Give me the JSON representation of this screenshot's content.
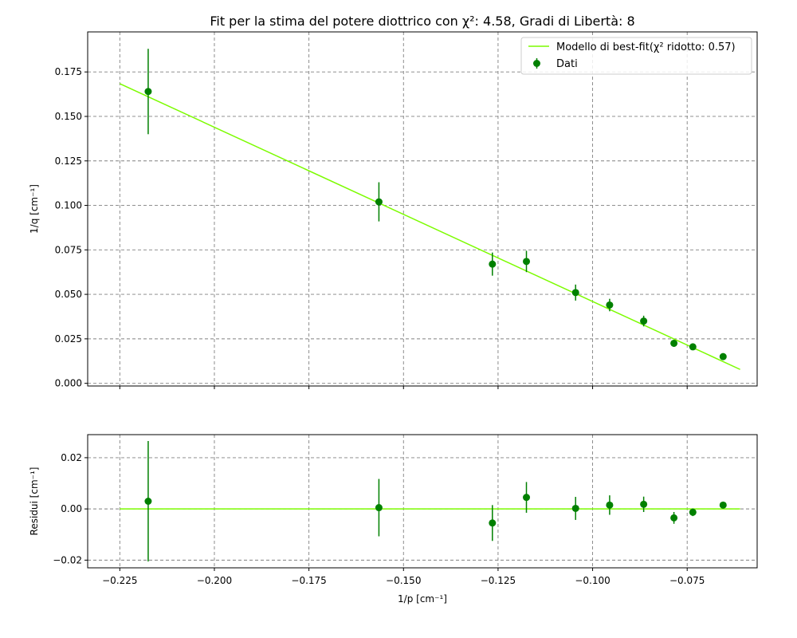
{
  "figure": {
    "title": "Fit per la stima del potere diottrico con χ²: 4.58, Gradi di Libertà: 8"
  },
  "colors": {
    "fit_line": "#7CFC00",
    "data_points": "#008000",
    "grid": "#808080"
  },
  "chart_data": [
    {
      "type": "scatter",
      "panel": "main",
      "title": "Fit per la stima del potere diottrico con χ²: 4.58, Gradi di Libertà: 8",
      "xlabel": "",
      "ylabel": "1/q [cm⁻¹]",
      "xlim": [
        -0.2335,
        -0.0565
      ],
      "ylim": [
        -0.0015,
        0.1975
      ],
      "xticks": [
        -0.225,
        -0.2,
        -0.175,
        -0.15,
        -0.125,
        -0.1,
        -0.075
      ],
      "yticks": [
        0.0,
        0.025,
        0.05,
        0.075,
        0.1,
        0.125,
        0.15,
        0.175
      ],
      "ytick_labels": [
        "0.000",
        "0.025",
        "0.050",
        "0.075",
        "0.100",
        "0.125",
        "0.150",
        "0.175"
      ],
      "grid": true,
      "legend": "top-right",
      "series": [
        {
          "name": "Modello di best-fit(χ² ridotto: 0.57)",
          "kind": "line",
          "x": [
            -0.225,
            -0.061
          ],
          "y": [
            0.1684,
            0.0078
          ]
        },
        {
          "name": "Dati",
          "kind": "errorbar",
          "x": [
            -0.2175,
            -0.1565,
            -0.1265,
            -0.1175,
            -0.1045,
            -0.0955,
            -0.0865,
            -0.0785,
            -0.0735,
            -0.0655
          ],
          "y": [
            0.164,
            0.102,
            0.067,
            0.0685,
            0.051,
            0.044,
            0.035,
            0.0225,
            0.0205,
            0.015
          ],
          "yerr": [
            0.024,
            0.011,
            0.0065,
            0.006,
            0.0045,
            0.0035,
            0.003,
            0.002,
            0.0015,
            0.0012
          ]
        }
      ]
    },
    {
      "type": "scatter",
      "panel": "residuals",
      "xlabel": "1/p [cm⁻¹]",
      "ylabel": "Residui [cm⁻¹]",
      "xlim": [
        -0.2335,
        -0.0565
      ],
      "ylim": [
        -0.023,
        0.029
      ],
      "xticks": [
        -0.225,
        -0.2,
        -0.175,
        -0.15,
        -0.125,
        -0.1,
        -0.075
      ],
      "xtick_labels": [
        "−0.225",
        "−0.200",
        "−0.175",
        "−0.150",
        "−0.125",
        "−0.100",
        "−0.075"
      ],
      "yticks": [
        -0.02,
        0.0,
        0.02
      ],
      "ytick_labels": [
        "−0.02",
        "0.00",
        "0.02"
      ],
      "grid": true,
      "series": [
        {
          "kind": "line",
          "x": [
            -0.225,
            -0.061
          ],
          "y": [
            0.0,
            0.0
          ]
        },
        {
          "kind": "errorbar",
          "x": [
            -0.2175,
            -0.1565,
            -0.1265,
            -0.1175,
            -0.1045,
            -0.0955,
            -0.0865,
            -0.0785,
            -0.0735,
            -0.0655
          ],
          "y": [
            0.003,
            0.0005,
            -0.0055,
            0.0045,
            0.0002,
            0.0015,
            0.0018,
            -0.0035,
            -0.0013,
            0.0015
          ],
          "yerr": [
            0.0235,
            0.0112,
            0.007,
            0.006,
            0.0045,
            0.0038,
            0.003,
            0.0023,
            0.0015,
            0.0012
          ]
        }
      ]
    }
  ]
}
